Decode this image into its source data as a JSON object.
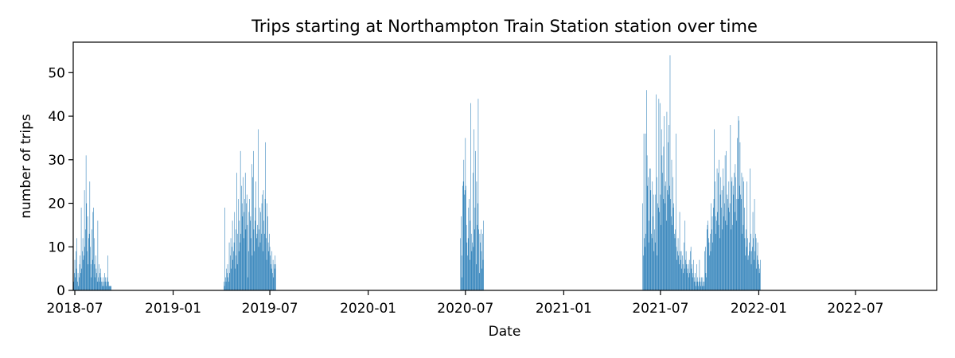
{
  "chart_data": {
    "type": "bar",
    "title": "Trips starting at Northampton Train Station station over time",
    "xlabel": "Date",
    "ylabel": "number of trips",
    "x_type": "date",
    "xlim": [
      "2018-06-28",
      "2022-11-30"
    ],
    "ylim": [
      0,
      57
    ],
    "x_ticks": [
      "2018-07",
      "2019-01",
      "2019-07",
      "2020-01",
      "2020-07",
      "2021-01",
      "2021-07",
      "2022-01",
      "2022-07"
    ],
    "y_ticks": [
      0,
      10,
      20,
      30,
      40,
      50
    ],
    "grid": false,
    "bar_color": "#1f77b4",
    "segments": [
      {
        "start": "2018-06-29",
        "values": [
          2,
          4,
          7,
          3,
          9,
          5,
          12,
          2,
          4,
          1,
          3,
          6,
          8,
          4,
          19,
          5,
          9,
          12,
          7,
          8,
          23,
          10,
          14,
          31,
          20,
          9,
          17,
          6,
          12,
          13,
          25,
          10,
          6,
          3,
          14,
          7,
          18,
          19,
          12,
          6,
          3,
          8,
          5,
          4,
          2,
          16,
          3,
          6,
          2,
          4,
          5,
          3,
          2,
          1,
          2,
          3,
          1,
          2,
          4,
          3,
          2,
          1,
          3,
          2,
          8,
          2,
          1,
          1,
          1,
          1,
          1
        ]
      },
      {
        "start": "2019-04-06",
        "values": [
          2,
          1,
          19,
          3,
          2,
          5,
          4,
          6,
          3,
          2,
          11,
          4,
          8,
          12,
          5,
          10,
          16,
          7,
          9,
          11,
          18,
          5,
          14,
          8,
          27,
          6,
          13,
          21,
          9,
          16,
          11,
          32,
          13,
          24,
          20,
          17,
          26,
          12,
          18,
          21,
          27,
          14,
          20,
          22,
          15,
          3,
          9,
          18,
          21,
          16,
          17,
          12,
          29,
          8,
          26,
          32,
          14,
          9,
          16,
          19,
          25,
          12,
          13,
          15,
          37,
          10,
          14,
          19,
          11,
          18,
          13,
          20,
          22,
          9,
          23,
          16,
          13,
          21,
          34,
          12,
          7,
          20,
          17,
          11,
          9,
          13,
          10,
          8,
          6,
          5,
          9,
          4,
          7,
          3,
          6,
          5,
          8,
          6
        ]
      },
      {
        "start": "2020-06-22",
        "values": [
          12,
          17,
          8,
          3,
          24,
          25,
          30,
          22,
          23,
          35,
          24,
          15,
          11,
          8,
          12,
          19,
          21,
          7,
          16,
          43,
          13,
          9,
          11,
          27,
          10,
          37,
          14,
          19,
          32,
          6,
          25,
          15,
          20,
          44,
          14,
          4,
          13,
          11,
          14,
          9,
          5,
          13,
          7,
          16
        ]
      },
      {
        "start": "2021-05-29",
        "values": [
          20,
          8,
          36,
          12,
          10,
          36,
          13,
          46,
          31,
          24,
          26,
          11,
          16,
          28,
          28,
          23,
          13,
          12,
          25,
          17,
          22,
          9,
          14,
          11,
          22,
          45,
          26,
          8,
          20,
          19,
          44,
          18,
          43,
          22,
          15,
          37,
          31,
          27,
          21,
          33,
          40,
          20,
          24,
          25,
          16,
          41,
          23,
          34,
          22,
          38,
          24,
          54,
          21,
          17,
          30,
          15,
          26,
          19,
          20,
          13,
          12,
          14,
          36,
          10,
          7,
          9,
          12,
          8,
          6,
          18,
          9,
          7,
          9,
          5,
          8,
          6,
          4,
          11,
          5,
          16,
          7,
          9,
          6,
          4,
          5,
          6,
          3,
          7,
          4,
          9,
          10,
          5,
          6,
          3,
          4,
          7,
          2,
          3,
          4,
          1,
          2,
          6,
          3,
          2,
          1,
          2,
          7,
          3,
          1,
          2,
          3,
          1,
          3,
          2,
          1,
          2,
          9,
          10,
          4,
          3,
          14,
          15,
          16,
          12,
          11,
          8,
          13,
          9,
          20,
          14,
          17,
          11,
          19,
          21,
          37,
          25,
          17,
          13,
          16,
          28,
          18,
          27,
          15,
          30,
          12,
          22,
          26,
          19,
          23,
          14,
          28,
          17,
          24,
          20,
          31,
          16,
          32,
          15,
          22,
          21,
          19,
          25,
          18,
          20,
          38,
          14,
          25,
          26,
          15,
          24,
          22,
          27,
          18,
          29,
          26,
          16,
          21,
          35,
          21,
          40,
          39,
          24,
          34,
          22,
          21,
          27,
          13,
          26,
          15,
          25,
          19,
          12,
          8,
          14,
          10,
          25,
          12,
          7,
          8,
          11,
          9,
          28,
          13,
          6,
          9,
          10,
          18,
          12,
          7,
          21,
          9,
          13,
          12,
          5,
          8,
          11,
          7,
          6,
          4,
          5,
          7
        ]
      }
    ]
  }
}
